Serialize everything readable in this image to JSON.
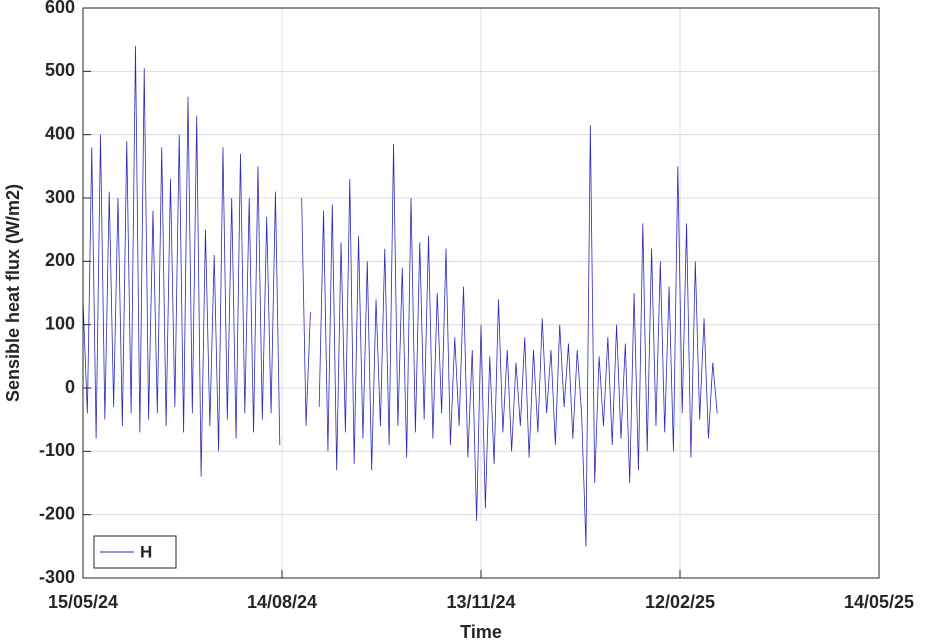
{
  "chart_data": {
    "type": "line",
    "xlabel": "Time",
    "ylabel": "Sensible heat flux (W/m2)",
    "xlim": [
      "15/05/24",
      "14/05/25"
    ],
    "xticks": [
      "15/05/24",
      "14/08/24",
      "13/11/24",
      "12/02/25",
      "14/05/25"
    ],
    "ylim": [
      -300,
      600
    ],
    "yticks": [
      -300,
      -200,
      -100,
      0,
      100,
      200,
      300,
      400,
      500,
      600
    ],
    "grid": true,
    "legend": "lower left",
    "x": [
      "15/05/24",
      "17/05/24",
      "19/05/24",
      "21/05/24",
      "23/05/24",
      "25/05/24",
      "27/05/24",
      "29/05/24",
      "31/05/24",
      "02/06/24",
      "04/06/24",
      "06/06/24",
      "08/06/24",
      "10/06/24",
      "12/06/24",
      "14/06/24",
      "16/06/24",
      "18/06/24",
      "20/06/24",
      "22/06/24",
      "24/06/24",
      "26/06/24",
      "28/06/24",
      "30/06/24",
      "02/07/24",
      "04/07/24",
      "06/07/24",
      "08/07/24",
      "10/07/24",
      "12/07/24",
      "14/07/24",
      "16/07/24",
      "18/07/24",
      "20/07/24",
      "22/07/24",
      "24/07/24",
      "26/07/24",
      "28/07/24",
      "30/07/24",
      "01/08/24",
      "03/08/24",
      "05/08/24",
      "07/08/24",
      "09/08/24",
      "11/08/24",
      "13/08/24",
      "15/08/24",
      "17/08/24",
      "19/08/24",
      "21/08/24",
      "23/08/24",
      "25/08/24",
      "27/08/24",
      "29/08/24",
      "31/08/24",
      "02/09/24",
      "04/09/24",
      "06/09/24",
      "08/09/24",
      "10/09/24",
      "12/09/24",
      "14/09/24",
      "16/09/24",
      "18/09/24",
      "20/09/24",
      "22/09/24",
      "24/09/24",
      "26/09/24",
      "28/09/24",
      "30/09/24",
      "02/10/24",
      "04/10/24",
      "06/10/24",
      "08/10/24",
      "10/10/24",
      "12/10/24",
      "14/10/24",
      "16/10/24",
      "18/10/24",
      "20/10/24",
      "22/10/24",
      "24/10/24",
      "26/10/24",
      "28/10/24",
      "30/10/24",
      "01/11/24",
      "03/11/24",
      "05/11/24",
      "07/11/24",
      "09/11/24",
      "11/11/24",
      "13/11/24",
      "15/11/24",
      "17/11/24",
      "19/11/24",
      "21/11/24",
      "23/11/24",
      "25/11/24",
      "27/11/24",
      "29/11/24",
      "01/12/24",
      "03/12/24",
      "05/12/24",
      "07/12/24",
      "09/12/24",
      "11/12/24",
      "13/12/24",
      "15/12/24",
      "17/12/24",
      "19/12/24",
      "21/12/24",
      "23/12/24",
      "25/12/24",
      "27/12/24",
      "29/12/24",
      "31/12/24",
      "02/01/25",
      "04/01/25",
      "06/01/25",
      "08/01/25",
      "10/01/25",
      "12/01/25",
      "14/01/25",
      "16/01/25",
      "18/01/25",
      "20/01/25",
      "22/01/25",
      "24/01/25",
      "26/01/25",
      "28/01/25",
      "30/01/25",
      "01/02/25",
      "03/02/25",
      "05/02/25",
      "07/02/25",
      "09/02/25",
      "11/02/25",
      "13/02/25",
      "15/02/25",
      "17/02/25",
      "19/02/25",
      "21/02/25",
      "23/02/25",
      "25/02/25",
      "27/02/25",
      "01/03/25"
    ],
    "series": [
      {
        "name": "H",
        "color": "#2b2bb8",
        "values": [
          140,
          -40,
          380,
          -80,
          400,
          -50,
          310,
          -30,
          300,
          -60,
          390,
          -40,
          540,
          -70,
          505,
          -50,
          280,
          -40,
          380,
          -60,
          330,
          -30,
          400,
          -70,
          460,
          -40,
          430,
          -140,
          250,
          -60,
          210,
          -100,
          380,
          -50,
          300,
          -80,
          370,
          -40,
          300,
          -70,
          350,
          -50,
          270,
          -40,
          310,
          -90,
          null,
          null,
          null,
          null,
          300,
          -60,
          120,
          null,
          -30,
          280,
          -100,
          290,
          -130,
          230,
          -70,
          330,
          -120,
          240,
          -80,
          200,
          -130,
          140,
          -60,
          220,
          -90,
          385,
          -60,
          190,
          -110,
          300,
          -70,
          230,
          -50,
          240,
          -80,
          150,
          -40,
          220,
          -90,
          80,
          -60,
          160,
          -110,
          60,
          -210,
          100,
          -190,
          50,
          -120,
          140,
          -70,
          60,
          -100,
          40,
          -60,
          80,
          -110,
          60,
          -70,
          110,
          -40,
          60,
          -90,
          100,
          -30,
          70,
          -80,
          60,
          -40,
          -250,
          415,
          -150,
          50,
          -60,
          80,
          -90,
          100,
          -80,
          70,
          -150,
          150,
          -130,
          260,
          -100,
          220,
          -60,
          200,
          -70,
          160,
          -100,
          350,
          -40,
          260,
          -110,
          200,
          -50,
          110,
          -80,
          40,
          -40
        ]
      }
    ]
  }
}
